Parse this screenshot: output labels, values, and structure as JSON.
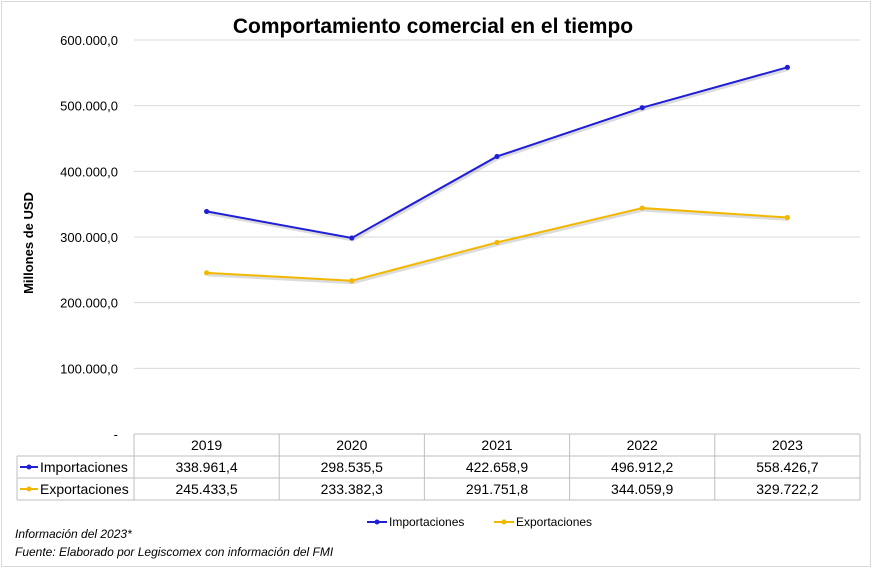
{
  "chart_data": {
    "type": "line",
    "title": "Comportamiento comercial en el tiempo",
    "ylabel": "Millones de USD",
    "xlabel": "",
    "categories": [
      "2019",
      "2020",
      "2021",
      "2022",
      "2023"
    ],
    "ylim": [
      0,
      600000
    ],
    "yticks": [
      {
        "value": 0,
        "label": "-"
      },
      {
        "value": 100000,
        "label": "100.000,0"
      },
      {
        "value": 200000,
        "label": "200.000,0"
      },
      {
        "value": 300000,
        "label": "300.000,0"
      },
      {
        "value": 400000,
        "label": "400.000,0"
      },
      {
        "value": 500000,
        "label": "500.000,0"
      },
      {
        "value": 600000,
        "label": "600.000,0"
      }
    ],
    "grid": true,
    "legend_position": "bottom",
    "series": [
      {
        "name": "Importaciones",
        "color": "#1f1fd6",
        "values": [
          338961.4,
          298535.5,
          422658.9,
          496912.2,
          558426.7
        ],
        "labels": [
          "338.961,4",
          "298.535,5",
          "422.658,9",
          "496.912,2",
          "558.426,7"
        ]
      },
      {
        "name": "Exportaciones",
        "color": "#f2b800",
        "values": [
          245433.5,
          233382.3,
          291751.8,
          344059.9,
          329722.2
        ],
        "labels": [
          "245.433,5",
          "233.382,3",
          "291.751,8",
          "344.059,9",
          "329.722,2"
        ]
      }
    ],
    "notes": [
      "Información del 2023*",
      "Fuente: Elaborado por Legiscomex con información del FMI"
    ]
  }
}
